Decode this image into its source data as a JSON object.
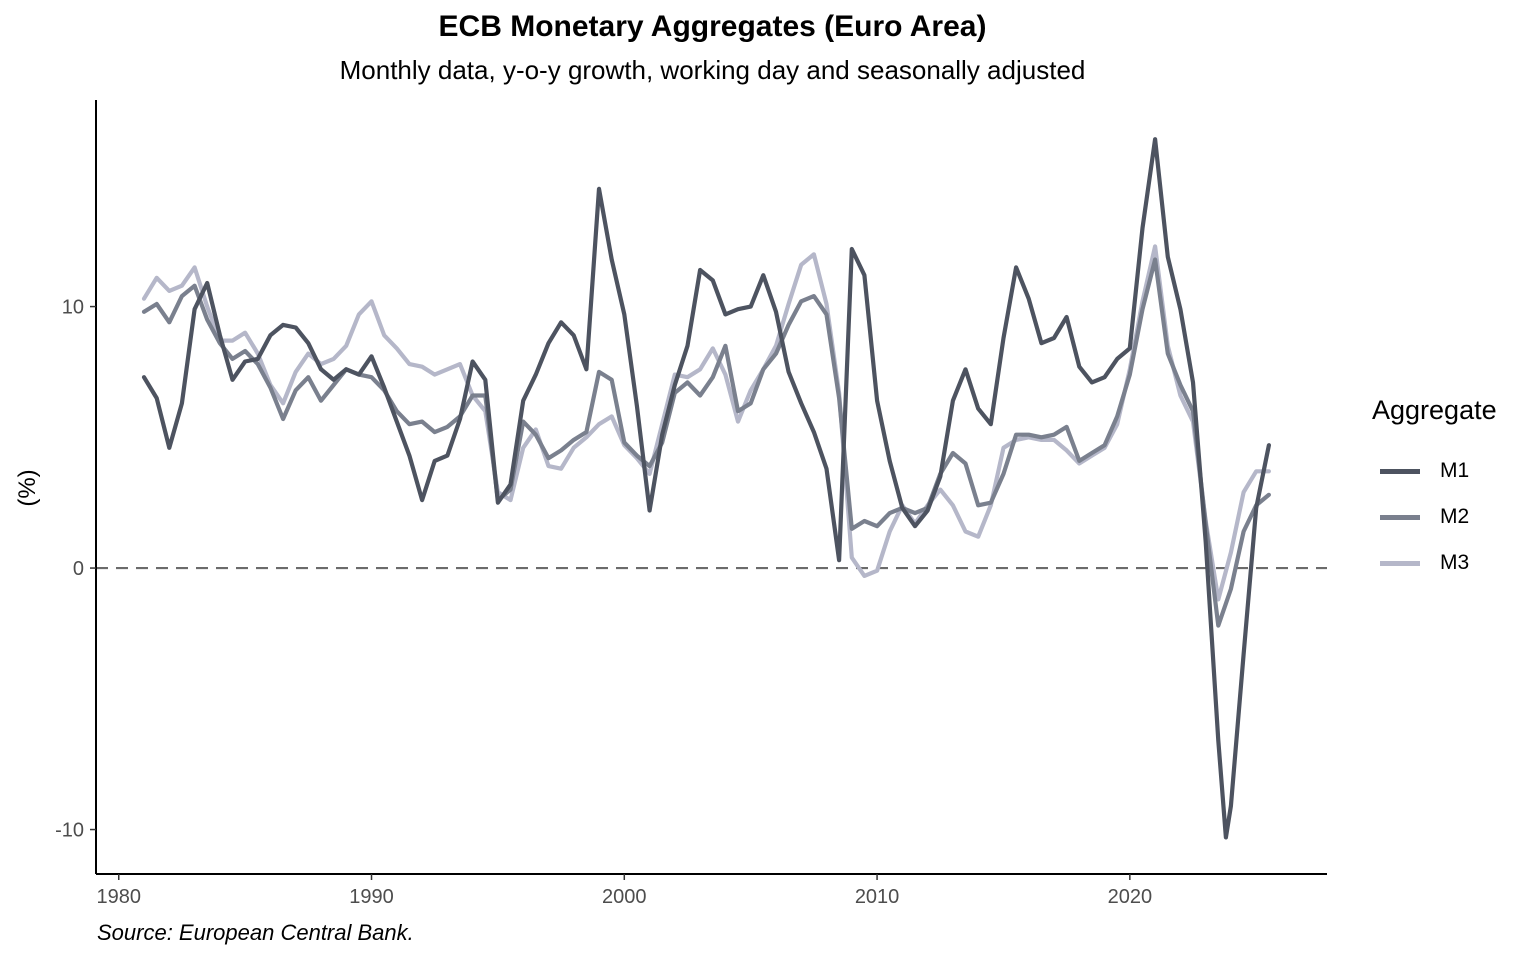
{
  "chart_data": {
    "type": "line",
    "title": "ECB Monetary Aggregates (Euro Area)",
    "subtitle": "Monthly data, y-o-y growth, working day and seasonally adjusted",
    "xlabel": "",
    "ylabel": "(%)",
    "caption": "Source: European Central Bank.",
    "xlim": [
      1979.1,
      2027.8
    ],
    "ylim": [
      -11.7,
      17.9
    ],
    "x_ticks": [
      1980,
      1990,
      2000,
      2010,
      2020
    ],
    "y_ticks": [
      -10,
      0,
      10
    ],
    "reference_line": {
      "y": 0,
      "style": "dashed"
    },
    "grid": false,
    "legend": {
      "title": "Aggregate",
      "position": "right"
    },
    "series": [
      {
        "name": "M1",
        "color": "#4d5360",
        "x": [
          1981.0,
          1981.5,
          1982.0,
          1982.5,
          1983.0,
          1983.5,
          1984.0,
          1984.5,
          1985.0,
          1985.5,
          1986.0,
          1986.5,
          1987.0,
          1987.5,
          1988.0,
          1988.5,
          1989.0,
          1989.5,
          1990.0,
          1990.5,
          1991.0,
          1991.5,
          1992.0,
          1992.5,
          1993.0,
          1993.5,
          1994.0,
          1994.5,
          1995.0,
          1995.5,
          1996.0,
          1996.5,
          1997.0,
          1997.5,
          1998.0,
          1998.5,
          1999.0,
          1999.5,
          2000.0,
          2000.5,
          2001.0,
          2001.5,
          2002.0,
          2002.5,
          2003.0,
          2003.5,
          2004.0,
          2004.5,
          2005.0,
          2005.5,
          2006.0,
          2006.5,
          2007.0,
          2007.5,
          2008.0,
          2008.5,
          2009.0,
          2009.5,
          2010.0,
          2010.5,
          2011.0,
          2011.5,
          2012.0,
          2012.5,
          2013.0,
          2013.5,
          2014.0,
          2014.5,
          2015.0,
          2015.5,
          2016.0,
          2016.5,
          2017.0,
          2017.5,
          2018.0,
          2018.5,
          2019.0,
          2019.5,
          2020.0,
          2020.5,
          2021.0,
          2021.5,
          2022.0,
          2022.5,
          2023.0,
          2023.5,
          2023.8,
          2024.0,
          2024.5,
          2025.0,
          2025.5
        ],
        "values": [
          7.3,
          6.5,
          4.6,
          6.3,
          9.9,
          10.9,
          8.9,
          7.2,
          7.9,
          8.0,
          8.9,
          9.3,
          9.2,
          8.6,
          7.6,
          7.2,
          7.6,
          7.4,
          8.1,
          6.9,
          5.6,
          4.3,
          2.6,
          4.1,
          4.3,
          5.7,
          7.9,
          7.2,
          2.5,
          3.2,
          6.4,
          7.4,
          8.6,
          9.4,
          8.9,
          7.6,
          14.5,
          11.8,
          9.7,
          6.2,
          2.2,
          5.1,
          7.0,
          8.5,
          11.4,
          11.0,
          9.7,
          9.9,
          10.0,
          11.2,
          9.8,
          7.5,
          6.3,
          5.2,
          3.8,
          0.3,
          12.2,
          11.2,
          6.4,
          4.1,
          2.3,
          1.6,
          2.2,
          3.5,
          6.4,
          7.6,
          6.1,
          5.5,
          8.8,
          11.5,
          10.3,
          8.6,
          8.8,
          9.6,
          7.7,
          7.1,
          7.3,
          8.0,
          8.4,
          13.0,
          16.4,
          11.9,
          9.9,
          7.1,
          1.0,
          -6.6,
          -10.3,
          -9.1,
          -3.3,
          2.3,
          4.7
        ]
      },
      {
        "name": "M2",
        "color": "#7a808e",
        "x": [
          1981.0,
          1981.5,
          1982.0,
          1982.5,
          1983.0,
          1983.5,
          1984.0,
          1984.5,
          1985.0,
          1985.5,
          1986.0,
          1986.5,
          1987.0,
          1987.5,
          1988.0,
          1988.5,
          1989.0,
          1989.5,
          1990.0,
          1990.5,
          1991.0,
          1991.5,
          1992.0,
          1992.5,
          1993.0,
          1993.5,
          1994.0,
          1994.5,
          1995.0,
          1995.5,
          1996.0,
          1996.5,
          1997.0,
          1997.5,
          1998.0,
          1998.5,
          1999.0,
          1999.5,
          2000.0,
          2000.5,
          2001.0,
          2001.5,
          2002.0,
          2002.5,
          2003.0,
          2003.5,
          2004.0,
          2004.5,
          2005.0,
          2005.5,
          2006.0,
          2006.5,
          2007.0,
          2007.5,
          2008.0,
          2008.5,
          2009.0,
          2009.5,
          2010.0,
          2010.5,
          2011.0,
          2011.5,
          2012.0,
          2012.5,
          2013.0,
          2013.5,
          2014.0,
          2014.5,
          2015.0,
          2015.5,
          2016.0,
          2016.5,
          2017.0,
          2017.5,
          2018.0,
          2018.5,
          2019.0,
          2019.5,
          2020.0,
          2020.5,
          2021.0,
          2021.5,
          2022.0,
          2022.5,
          2023.0,
          2023.5,
          2024.0,
          2024.5,
          2025.0,
          2025.5
        ],
        "values": [
          9.8,
          10.1,
          9.4,
          10.4,
          10.8,
          9.5,
          8.6,
          8.0,
          8.3,
          7.8,
          6.9,
          5.7,
          6.8,
          7.3,
          6.4,
          7.0,
          7.6,
          7.4,
          7.3,
          6.8,
          6.0,
          5.5,
          5.6,
          5.2,
          5.4,
          5.8,
          6.6,
          6.6,
          2.6,
          3.0,
          5.6,
          5.1,
          4.2,
          4.5,
          4.9,
          5.2,
          7.5,
          7.2,
          4.8,
          4.3,
          3.9,
          4.8,
          6.7,
          7.1,
          6.6,
          7.3,
          8.5,
          6.0,
          6.3,
          7.6,
          8.2,
          9.3,
          10.2,
          10.4,
          9.7,
          6.5,
          1.5,
          1.8,
          1.6,
          2.1,
          2.3,
          2.1,
          2.3,
          3.6,
          4.4,
          4.0,
          2.4,
          2.5,
          3.6,
          5.1,
          5.1,
          5.0,
          5.1,
          5.4,
          4.1,
          4.4,
          4.7,
          5.8,
          7.4,
          9.9,
          11.8,
          8.2,
          7.0,
          6.0,
          1.7,
          -2.2,
          -0.8,
          1.4,
          2.4,
          2.8
        ]
      },
      {
        "name": "M3",
        "color": "#b5b7c9",
        "x": [
          1981.0,
          1981.5,
          1982.0,
          1982.5,
          1983.0,
          1983.5,
          1984.0,
          1984.5,
          1985.0,
          1985.5,
          1986.0,
          1986.5,
          1987.0,
          1987.5,
          1988.0,
          1988.5,
          1989.0,
          1989.5,
          1990.0,
          1990.5,
          1991.0,
          1991.5,
          1992.0,
          1992.5,
          1993.0,
          1993.5,
          1994.0,
          1994.5,
          1995.0,
          1995.5,
          1996.0,
          1996.5,
          1997.0,
          1997.5,
          1998.0,
          1998.5,
          1999.0,
          1999.5,
          2000.0,
          2000.5,
          2001.0,
          2001.5,
          2002.0,
          2002.5,
          2003.0,
          2003.5,
          2004.0,
          2004.5,
          2005.0,
          2005.5,
          2006.0,
          2006.5,
          2007.0,
          2007.5,
          2008.0,
          2008.5,
          2009.0,
          2009.5,
          2010.0,
          2010.5,
          2011.0,
          2011.5,
          2012.0,
          2012.5,
          2013.0,
          2013.5,
          2014.0,
          2014.5,
          2015.0,
          2015.5,
          2016.0,
          2016.5,
          2017.0,
          2017.5,
          2018.0,
          2018.5,
          2019.0,
          2019.5,
          2020.0,
          2020.5,
          2021.0,
          2021.5,
          2022.0,
          2022.5,
          2023.0,
          2023.5,
          2024.0,
          2024.5,
          2025.0,
          2025.5
        ],
        "values": [
          10.3,
          11.1,
          10.6,
          10.8,
          11.5,
          10.0,
          8.7,
          8.7,
          9.0,
          8.2,
          7.0,
          6.3,
          7.5,
          8.2,
          7.8,
          8.0,
          8.5,
          9.7,
          10.2,
          8.9,
          8.4,
          7.8,
          7.7,
          7.4,
          7.6,
          7.8,
          6.6,
          6.0,
          2.9,
          2.6,
          4.6,
          5.3,
          3.9,
          3.8,
          4.6,
          5.0,
          5.5,
          5.8,
          4.7,
          4.2,
          3.6,
          5.5,
          7.4,
          7.3,
          7.6,
          8.4,
          7.4,
          5.6,
          6.8,
          7.6,
          8.5,
          10.1,
          11.6,
          12.0,
          10.1,
          6.7,
          0.4,
          -0.3,
          -0.1,
          1.4,
          2.4,
          1.7,
          2.4,
          3.0,
          2.4,
          1.4,
          1.2,
          2.4,
          4.6,
          4.9,
          5.0,
          4.9,
          4.9,
          4.5,
          4.0,
          4.3,
          4.6,
          5.5,
          7.6,
          10.2,
          12.3,
          8.5,
          6.6,
          5.6,
          1.8,
          -1.2,
          0.6,
          2.9,
          3.7,
          3.7
        ]
      }
    ]
  }
}
